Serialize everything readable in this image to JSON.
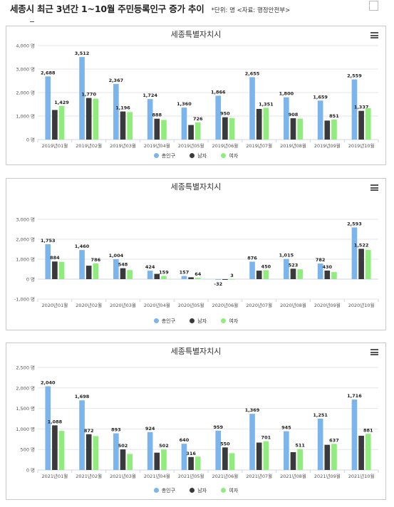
{
  "header": {
    "title": "세종시 최근 3년간 1~10월 주민등록인구 증가 추이",
    "note": "*단위: 명 <자료: 행정안전부>"
  },
  "colors": {
    "total": "#7cb5ec",
    "male": "#3a3a3d",
    "female": "#90ed7d"
  },
  "panels": [
    {
      "title": "세종특별자치시"
    },
    {
      "title": "세종특별자치시"
    },
    {
      "title": "세종특별자치시"
    }
  ],
  "legend": {
    "total": "총인구",
    "male": "남자",
    "female": "여자"
  },
  "chart_data": [
    {
      "type": "bar",
      "title": "세종특별자치시",
      "categories": [
        "2019년01월",
        "2019년02월",
        "2019년03월",
        "2019년04월",
        "2019년05월",
        "2019년06월",
        "2019년07월",
        "2019년08월",
        "2019년09월",
        "2019년10월"
      ],
      "series": [
        {
          "name": "총인구",
          "values": [
            2688,
            3512,
            2367,
            1724,
            1360,
            1866,
            2655,
            1800,
            1659,
            2559
          ]
        },
        {
          "name": "남자",
          "values": [
            1259,
            1770,
            1196,
            888,
            620,
            950,
            1304,
            908,
            808,
            1222
          ]
        },
        {
          "name": "여자",
          "values": [
            1429,
            1742,
            1171,
            836,
            726,
            916,
            1351,
            892,
            851,
            1337
          ]
        }
      ],
      "labels": [
        [
          "2,688",
          "3,512",
          "2,367",
          "1,724",
          "1,360",
          "1,866",
          "2,655",
          "1,800",
          "1,659",
          "2,559"
        ],
        [
          "",
          "1,770",
          "1,196",
          "888",
          "",
          "950",
          "",
          "908",
          "",
          "1,337"
        ],
        [
          "1,429",
          "",
          "",
          "",
          "726",
          "",
          "1,351",
          "",
          "851",
          ""
        ]
      ],
      "yticks": [
        0,
        1000,
        2000,
        3000,
        4000
      ],
      "ytick_labels": [
        "0 명",
        "1,000 명",
        "2,000 명",
        "3,000 명",
        "4,000 명"
      ],
      "ylim": [
        0,
        4000
      ],
      "grid": true,
      "legend_position": "bottom"
    },
    {
      "type": "bar",
      "title": "세종특별자치시",
      "categories": [
        "2020년01월",
        "2020년02월",
        "2020년03월",
        "2020년04월",
        "2020년05월",
        "2020년06월",
        "2020년07월",
        "2020년08월",
        "2020년09월",
        "2020년10월"
      ],
      "series": [
        {
          "name": "총인구",
          "values": [
            1753,
            1460,
            1004,
            424,
            157,
            -32,
            876,
            1015,
            782,
            2593
          ]
        },
        {
          "name": "남자",
          "values": [
            884,
            674,
            548,
            265,
            93,
            -35,
            426,
            523,
            430,
            1522
          ]
        },
        {
          "name": "여자",
          "values": [
            869,
            786,
            456,
            159,
            64,
            3,
            450,
            492,
            352,
            1471
          ]
        }
      ],
      "labels": [
        [
          "1,753",
          "1,460",
          "1,004",
          "424",
          "157",
          "-32",
          "876",
          "1,015",
          "782",
          "2,593"
        ],
        [
          "884",
          "",
          "548",
          "",
          "",
          "",
          "",
          "523",
          "430",
          "1,522"
        ],
        [
          "",
          "786",
          "",
          "159",
          "64",
          "3",
          "450",
          "",
          "",
          ""
        ]
      ],
      "yticks": [
        -1000,
        0,
        1000,
        2000,
        3000
      ],
      "ytick_labels": [
        "-1,000 명",
        "0 명",
        "1,000 명",
        "2,000 명",
        "3,000 명"
      ],
      "ylim": [
        -1000,
        3000
      ],
      "grid": true,
      "legend_position": "bottom"
    },
    {
      "type": "bar",
      "title": "세종특별자치시",
      "categories": [
        "2021년01월",
        "2021년02월",
        "2021년03월",
        "2021년04월",
        "2021년05월",
        "2021년06월",
        "2021년07월",
        "2021년08월",
        "2021년09월",
        "2021년10월"
      ],
      "series": [
        {
          "name": "총인구",
          "values": [
            2040,
            1698,
            893,
            924,
            640,
            959,
            1369,
            945,
            1251,
            1716
          ]
        },
        {
          "name": "남자",
          "values": [
            1088,
            872,
            502,
            422,
            316,
            550,
            668,
            434,
            614,
            835
          ]
        },
        {
          "name": "여자",
          "values": [
            952,
            826,
            391,
            502,
            324,
            409,
            701,
            511,
            637,
            881
          ]
        }
      ],
      "labels": [
        [
          "2,040",
          "1,698",
          "893",
          "924",
          "640",
          "959",
          "1,369",
          "945",
          "1,251",
          "1,716"
        ],
        [
          "1,088",
          "872",
          "502",
          "",
          "316",
          "550",
          "",
          "",
          "",
          ""
        ],
        [
          "",
          "",
          "",
          "502",
          "",
          "",
          "701",
          "511",
          "637",
          "881"
        ]
      ],
      "yticks": [
        0,
        500,
        1000,
        1500,
        2000,
        2500
      ],
      "ytick_labels": [
        "0 명",
        "500 명",
        "1,000 명",
        "1,500 명",
        "2,000 명",
        "2,500 명"
      ],
      "ylim": [
        0,
        2500
      ],
      "grid": true,
      "legend_position": "bottom"
    }
  ]
}
